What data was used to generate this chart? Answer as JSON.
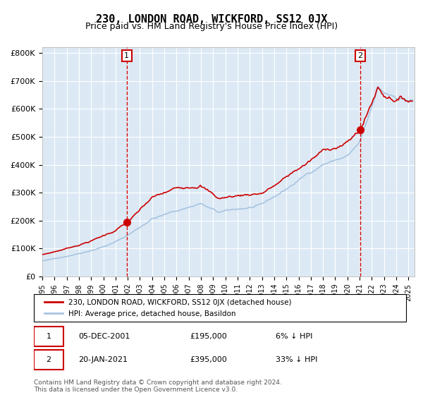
{
  "title": "230, LONDON ROAD, WICKFORD, SS12 0JX",
  "subtitle": "Price paid vs. HM Land Registry's House Price Index (HPI)",
  "title_fontsize": 11,
  "subtitle_fontsize": 9,
  "background_color": "#dce9f5",
  "plot_bg_color": "#dce9f5",
  "hpi_color": "#a8c4e0",
  "price_color": "#cc0000",
  "marker_color": "#cc0000",
  "vline_color": "#cc0000",
  "annotation_bg": "#ffffff",
  "annotation_border": "#cc0000",
  "ylabel_ticks": [
    "£0",
    "£100K",
    "£200K",
    "£300K",
    "£400K",
    "£500K",
    "£600K",
    "£700K",
    "£800K"
  ],
  "ytick_values": [
    0,
    100000,
    200000,
    300000,
    400000,
    500000,
    600000,
    700000,
    800000
  ],
  "ylim": [
    0,
    820000
  ],
  "xlim_start": 1995.0,
  "xlim_end": 2025.5,
  "purchase1_date": 2001.92,
  "purchase1_price": 195000,
  "purchase2_date": 2021.05,
  "purchase2_price": 395000,
  "legend_label_red": "230, LONDON ROAD, WICKFORD, SS12 0JX (detached house)",
  "legend_label_blue": "HPI: Average price, detached house, Basildon",
  "annotation1_label": "1",
  "annotation1_text": "05-DEC-2001",
  "annotation1_price": "£195,000",
  "annotation1_hpi": "6% ↓ HPI",
  "annotation2_label": "2",
  "annotation2_text": "20-JAN-2021",
  "annotation2_price": "£395,000",
  "annotation2_hpi": "33% ↓ HPI",
  "footer": "Contains HM Land Registry data © Crown copyright and database right 2024.\nThis data is licensed under the Open Government Licence v3.0."
}
